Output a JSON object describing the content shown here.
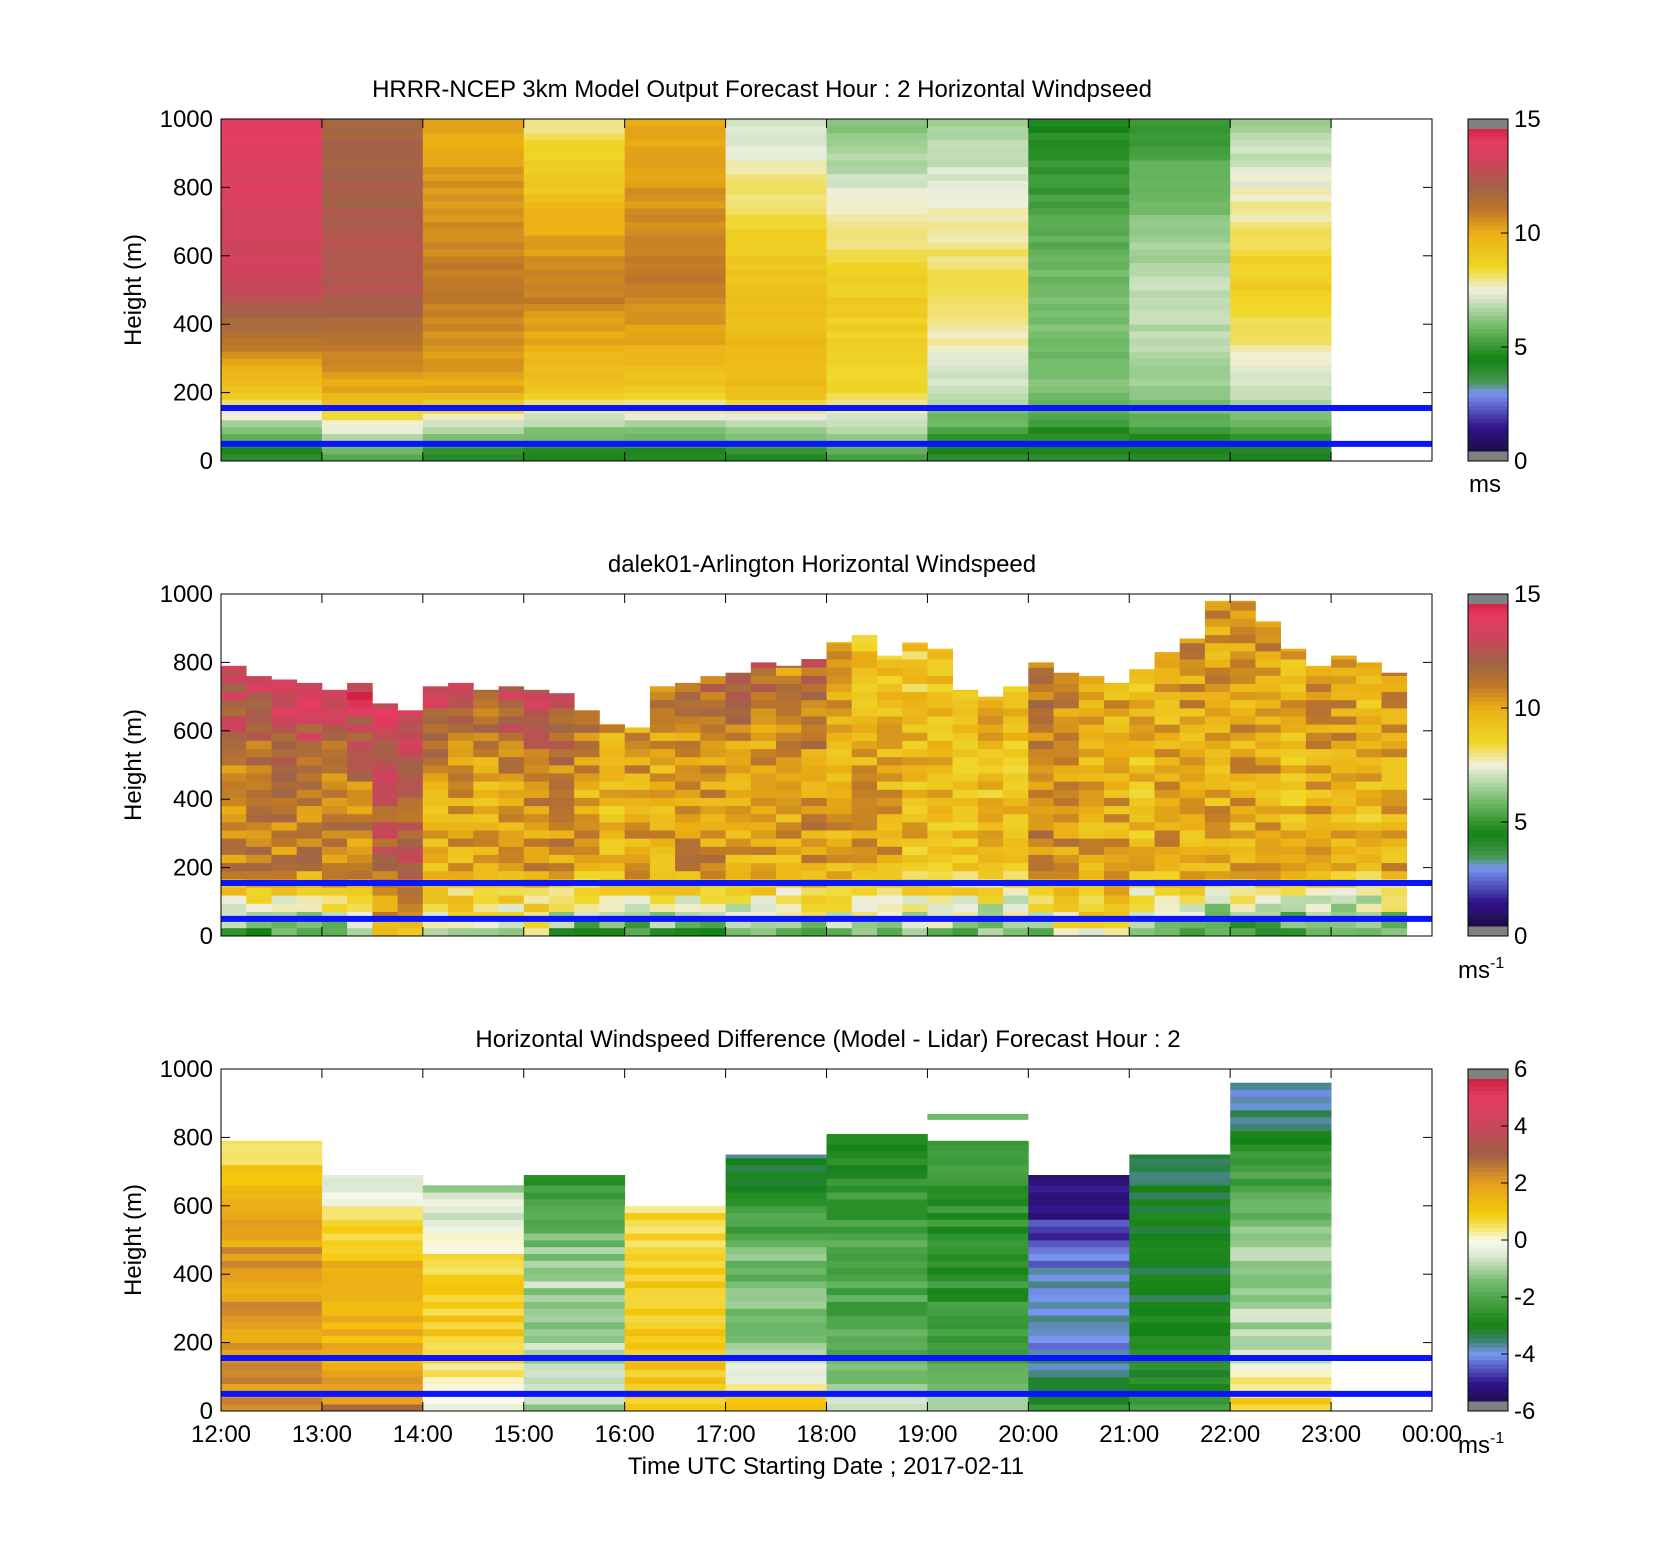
{
  "xticks": [
    "12:00",
    "13:00",
    "14:00",
    "15:00",
    "16:00",
    "17:00",
    "18:00",
    "19:00",
    "20:00",
    "21:00",
    "22:00",
    "23:00",
    "00:00"
  ],
  "xlabel": "Time UTC  Starting Date ; 2017-02-11",
  "ylabel": "Height (m)",
  "yticks": [
    "0",
    "200",
    "400",
    "600",
    "800",
    "1000"
  ],
  "chart_data": [
    {
      "type": "heatmap",
      "title": "HRRR-NCEP 3km Model Output   Forecast Hour : 2 Horizontal Windpseed",
      "ylabel": "Height (m)",
      "xlim_hours": [
        12,
        24
      ],
      "ylim": [
        0,
        1000
      ],
      "colorbar": {
        "range": [
          0,
          15
        ],
        "ticks": [
          "0",
          "5",
          "10",
          "15"
        ],
        "unit_label": "ms",
        "unit_sup": "",
        "colormap": "windspeed"
      },
      "hlines_m": [
        50,
        155
      ],
      "hourly_columns": [
        {
          "hour": 12,
          "bottom": 4,
          "low_200": 9,
          "mid_500": 13,
          "top": 14,
          "top_m": 1000
        },
        {
          "hour": 13,
          "bottom": 5,
          "low_200": 10,
          "mid_500": 12.5,
          "top": 12,
          "top_m": 1000
        },
        {
          "hour": 14,
          "bottom": 4,
          "low_200": 10,
          "mid_500": 11,
          "top": 10,
          "top_m": 1000
        },
        {
          "hour": 15,
          "bottom": 4,
          "low_200": 9,
          "mid_500": 11,
          "top": 8,
          "top_m": 1000
        },
        {
          "hour": 16,
          "bottom": 4,
          "low_200": 9,
          "mid_500": 11,
          "top": 10,
          "top_m": 1000
        },
        {
          "hour": 17,
          "bottom": 4,
          "low_200": 9.5,
          "mid_500": 9.5,
          "top": 7,
          "top_m": 1000
        },
        {
          "hour": 18,
          "bottom": 5,
          "low_200": 8.5,
          "mid_500": 9,
          "top": 6,
          "top_m": 1000
        },
        {
          "hour": 19,
          "bottom": 4,
          "low_200": 7,
          "mid_500": 8.5,
          "top": 6.5,
          "top_m": 1000
        },
        {
          "hour": 20,
          "bottom": 4,
          "low_200": 6,
          "mid_500": 6,
          "top": 4.5,
          "top_m": 1000
        },
        {
          "hour": 21,
          "bottom": 4,
          "low_200": 6.5,
          "mid_500": 7,
          "top": 5,
          "top_m": 1000
        },
        {
          "hour": 22,
          "bottom": 4,
          "low_200": 7,
          "mid_500": 9,
          "top": 6.5,
          "top_m": 1000
        }
      ]
    },
    {
      "type": "heatmap",
      "title": "dalek01-Arlington  Horizontal Windspeed",
      "ylabel": "Height (m)",
      "xlim_hours": [
        12,
        24
      ],
      "ylim": [
        0,
        1000
      ],
      "colorbar": {
        "range": [
          0,
          15
        ],
        "ticks": [
          "0",
          "5",
          "10",
          "15"
        ],
        "unit_label": "ms",
        "unit_sup": "-1",
        "colormap": "windspeed"
      },
      "hlines_m": [
        50,
        155
      ],
      "column_width_hours": 0.25,
      "columns": [
        {
          "t": 12.0,
          "top_m": 790,
          "bottom": 5,
          "mid": 11,
          "top": 13.5
        },
        {
          "t": 12.25,
          "top_m": 760,
          "bottom": 5,
          "mid": 11,
          "top": 13
        },
        {
          "t": 12.5,
          "top_m": 750,
          "bottom": 5,
          "mid": 11,
          "top": 13.5
        },
        {
          "t": 12.75,
          "top_m": 740,
          "bottom": 5,
          "mid": 11,
          "top": 14
        },
        {
          "t": 13.0,
          "top_m": 720,
          "bottom": 5.5,
          "mid": 11,
          "top": 13
        },
        {
          "t": 13.25,
          "top_m": 740,
          "bottom": 5.5,
          "mid": 11,
          "top": 14
        },
        {
          "t": 13.5,
          "top_m": 680,
          "bottom": 9.5,
          "mid": 12,
          "top": 13.5
        },
        {
          "t": 13.75,
          "top_m": 660,
          "bottom": 9.5,
          "mid": 12,
          "top": 13.5
        },
        {
          "t": 14.0,
          "top_m": 730,
          "bottom": 7,
          "mid": 10,
          "top": 13
        },
        {
          "t": 14.25,
          "top_m": 740,
          "bottom": 7,
          "mid": 10,
          "top": 13
        },
        {
          "t": 14.5,
          "top_m": 720,
          "bottom": 7,
          "mid": 10,
          "top": 12
        },
        {
          "t": 14.75,
          "top_m": 730,
          "bottom": 7,
          "mid": 10,
          "top": 13
        },
        {
          "t": 15.0,
          "top_m": 720,
          "bottom": 7,
          "mid": 10.5,
          "top": 13
        },
        {
          "t": 15.25,
          "top_m": 710,
          "bottom": 5,
          "mid": 10.5,
          "top": 12.5
        },
        {
          "t": 15.5,
          "top_m": 660,
          "bottom": 5,
          "mid": 10,
          "top": 11
        },
        {
          "t": 15.75,
          "top_m": 620,
          "bottom": 5,
          "mid": 9.5,
          "top": 10
        },
        {
          "t": 16.0,
          "top_m": 610,
          "bottom": 5,
          "mid": 10,
          "top": 10.5
        },
        {
          "t": 16.25,
          "top_m": 730,
          "bottom": 5,
          "mid": 10,
          "top": 11
        },
        {
          "t": 16.5,
          "top_m": 740,
          "bottom": 4.5,
          "mid": 10.5,
          "top": 11
        },
        {
          "t": 16.75,
          "top_m": 760,
          "bottom": 4.5,
          "mid": 10.5,
          "top": 11.5
        },
        {
          "t": 17.0,
          "top_m": 770,
          "bottom": 6,
          "mid": 10,
          "top": 12
        },
        {
          "t": 17.25,
          "top_m": 800,
          "bottom": 6,
          "mid": 10,
          "top": 12
        },
        {
          "t": 17.5,
          "top_m": 790,
          "bottom": 6,
          "mid": 10,
          "top": 11
        },
        {
          "t": 17.75,
          "top_m": 810,
          "bottom": 6,
          "mid": 10.5,
          "top": 12
        },
        {
          "t": 18.0,
          "top_m": 860,
          "bottom": 6,
          "mid": 10,
          "top": 10
        },
        {
          "t": 18.25,
          "top_m": 880,
          "bottom": 6,
          "mid": 10,
          "top": 9.5
        },
        {
          "t": 18.5,
          "top_m": 820,
          "bottom": 6,
          "mid": 10,
          "top": 9.5
        },
        {
          "t": 18.75,
          "top_m": 860,
          "bottom": 6,
          "mid": 9.5,
          "top": 9
        },
        {
          "t": 19.0,
          "top_m": 840,
          "bottom": 6,
          "mid": 9.5,
          "top": 9.5
        },
        {
          "t": 19.25,
          "top_m": 720,
          "bottom": 6,
          "mid": 9.5,
          "top": 9.5
        },
        {
          "t": 19.5,
          "top_m": 700,
          "bottom": 6,
          "mid": 9.5,
          "top": 9.5
        },
        {
          "t": 19.75,
          "top_m": 730,
          "bottom": 6,
          "mid": 9.5,
          "top": 9.5
        },
        {
          "t": 20.0,
          "top_m": 800,
          "bottom": 6,
          "mid": 11,
          "top": 11
        },
        {
          "t": 20.25,
          "top_m": 770,
          "bottom": 8,
          "mid": 10.5,
          "top": 11
        },
        {
          "t": 20.5,
          "top_m": 760,
          "bottom": 8,
          "mid": 10,
          "top": 10.5
        },
        {
          "t": 20.75,
          "top_m": 740,
          "bottom": 8,
          "mid": 10,
          "top": 10
        },
        {
          "t": 21.0,
          "top_m": 780,
          "bottom": 6,
          "mid": 9.5,
          "top": 9.5
        },
        {
          "t": 21.25,
          "top_m": 830,
          "bottom": 6,
          "mid": 10,
          "top": 10
        },
        {
          "t": 21.5,
          "top_m": 870,
          "bottom": 5,
          "mid": 10,
          "top": 10.5
        },
        {
          "t": 21.75,
          "top_m": 980,
          "bottom": 4.5,
          "mid": 10,
          "top": 10.5
        },
        {
          "t": 22.0,
          "top_m": 980,
          "bottom": 4.5,
          "mid": 10,
          "top": 10.5
        },
        {
          "t": 22.25,
          "top_m": 920,
          "bottom": 4.5,
          "mid": 10,
          "top": 10.5
        },
        {
          "t": 22.5,
          "top_m": 840,
          "bottom": 4.5,
          "mid": 9.5,
          "top": 10
        },
        {
          "t": 22.75,
          "top_m": 790,
          "bottom": 5,
          "mid": 10,
          "top": 10.5
        },
        {
          "t": 23.0,
          "top_m": 820,
          "bottom": 5,
          "mid": 10,
          "top": 10.5
        },
        {
          "t": 23.25,
          "top_m": 800,
          "bottom": 5,
          "mid": 9.5,
          "top": 10
        },
        {
          "t": 23.5,
          "top_m": 770,
          "bottom": 5,
          "mid": 10,
          "top": 10.5
        }
      ]
    },
    {
      "type": "heatmap",
      "title": "Horizontal Windspeed Difference (Model - Lidar) Forecast Hour : 2",
      "ylabel": "Height (m)",
      "xlabel": "Time UTC  Starting Date ; 2017-02-11",
      "xlim_hours": [
        12,
        24
      ],
      "ylim": [
        0,
        1000
      ],
      "colorbar": {
        "range": [
          -6,
          6
        ],
        "ticks": [
          "-6",
          "-4",
          "-2",
          "0",
          "2",
          "4",
          "6"
        ],
        "unit_label": "ms",
        "unit_sup": "-1",
        "colormap": "difference"
      },
      "hlines_m": [
        50,
        155
      ],
      "hourly_columns": [
        {
          "hour": 12,
          "top_m": 790,
          "bottom": 2.5,
          "mid": 2,
          "top": 0.5
        },
        {
          "hour": 13,
          "top_m": 690,
          "bottom": 2.5,
          "mid": 1.5,
          "top": -0.5
        },
        {
          "hour": 14,
          "top_m": 660,
          "bottom": 0,
          "mid": 1,
          "top": -1
        },
        {
          "hour": 15,
          "top_m": 690,
          "bottom": -1,
          "mid": -1,
          "top": -2.5
        },
        {
          "hour": 16,
          "top_m": 600,
          "bottom": 1,
          "mid": 1,
          "top": 0.5
        },
        {
          "hour": 17,
          "top_m": 750,
          "bottom": 1,
          "mid": -1.5,
          "top": -3.5
        },
        {
          "hour": 18,
          "top_m": 810,
          "bottom": -0.5,
          "mid": -2,
          "top": -3
        },
        {
          "hour": 19,
          "top_m": 790,
          "bottom": -1,
          "mid": -2.5,
          "top": -2.5
        },
        {
          "hour": 20,
          "top_m": 690,
          "bottom": -2.5,
          "mid": -4,
          "top": -5.5
        },
        {
          "hour": 21,
          "top_m": 750,
          "bottom": -2.5,
          "mid": -3,
          "top": -3.5
        },
        {
          "hour": 22,
          "top_m": 960,
          "bottom": 1,
          "mid": -1,
          "top": -4
        }
      ],
      "isolated_segments": [
        {
          "t0": 19.0,
          "t1": 20.0,
          "m": 860,
          "value": -1.5
        }
      ]
    }
  ]
}
